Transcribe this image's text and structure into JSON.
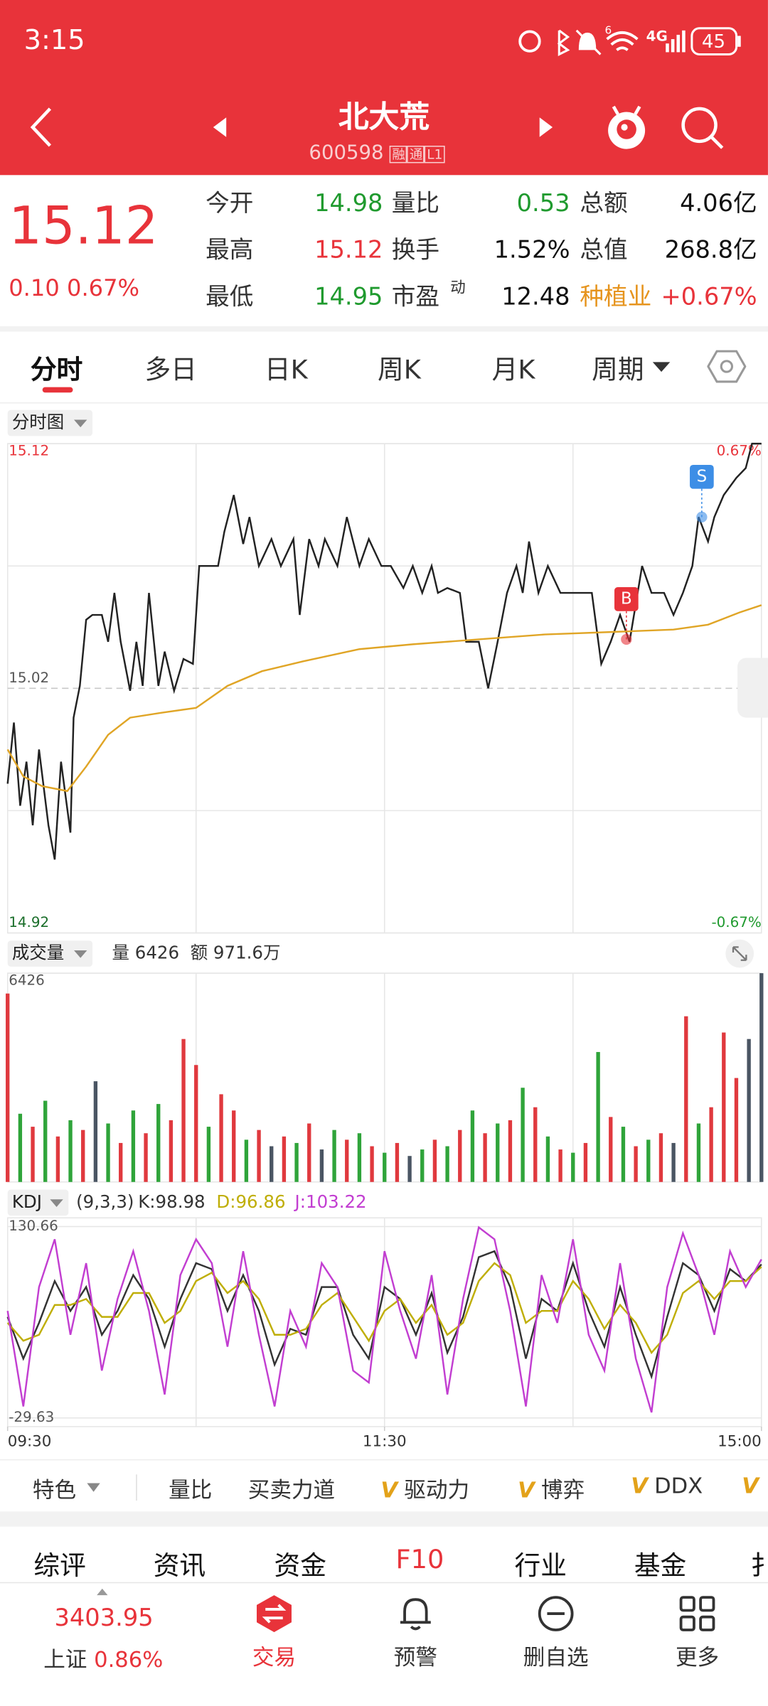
{
  "status_bar": {
    "time": "3:15",
    "wifi_label": "6",
    "network": "4G",
    "battery": "45"
  },
  "header": {
    "title": "北大荒",
    "code": "600598",
    "tags": [
      "融",
      "通",
      "L1"
    ]
  },
  "quote": {
    "price": "15.12",
    "change": "0.10",
    "change_pct": "0.67%",
    "stats": [
      [
        "今开",
        "14.98",
        "量比",
        "0.53",
        "总额",
        "4.06亿"
      ],
      [
        "最高",
        "15.12",
        "换手",
        "1.52%",
        "总值",
        "268.8亿"
      ],
      [
        "最低",
        "14.95",
        "市盈",
        "12.48",
        "种植业",
        "+0.67%"
      ]
    ],
    "pe_tag": "动"
  },
  "period_tabs": [
    "分时",
    "多日",
    "日K",
    "周K",
    "月K",
    "周期"
  ],
  "chart_data": [
    {
      "type": "line",
      "title": "分时图",
      "xlim": [
        0,
        240
      ],
      "ylim": [
        14.92,
        15.12
      ],
      "yticks": [
        14.92,
        15.02,
        15.12
      ],
      "pct_labels": [
        "0.67%",
        "-0.67%"
      ],
      "series": [
        {
          "color": "#222222",
          "x": [
            0,
            2,
            4,
            6,
            8,
            10,
            13,
            15,
            17,
            20,
            21,
            23,
            25,
            27,
            30,
            32,
            34,
            36,
            39,
            41,
            43,
            45,
            48,
            50,
            53,
            56,
            59,
            61,
            63,
            67,
            69,
            72,
            75,
            77,
            80,
            84,
            87,
            91,
            93,
            96,
            99,
            101,
            105,
            108,
            112,
            115,
            119,
            122,
            126,
            129,
            132,
            135,
            137,
            140,
            144,
            146,
            150,
            153,
            156,
            159,
            162,
            164,
            166,
            169,
            172,
            176,
            179,
            182,
            186,
            189,
            192,
            195,
            198,
            202,
            205,
            209,
            212,
            215,
            218,
            220,
            223,
            225,
            228,
            232,
            235,
            237,
            240
          ],
          "values": [
            14.981,
            15.006,
            14.972,
            14.99,
            14.964,
            14.995,
            14.964,
            14.95,
            14.99,
            14.961,
            15.008,
            15.021,
            15.048,
            15.05,
            15.05,
            15.039,
            15.059,
            15.039,
            15.019,
            15.039,
            15.021,
            15.059,
            15.021,
            15.035,
            15.019,
            15.032,
            15.03,
            15.07,
            15.07,
            15.07,
            15.084,
            15.099,
            15.079,
            15.09,
            15.07,
            15.081,
            15.07,
            15.081,
            15.05,
            15.081,
            15.07,
            15.081,
            15.07,
            15.09,
            15.07,
            15.081,
            15.07,
            15.07,
            15.061,
            15.07,
            15.059,
            15.07,
            15.059,
            15.061,
            15.059,
            15.039,
            15.039,
            15.02,
            15.039,
            15.059,
            15.07,
            15.059,
            15.08,
            15.059,
            15.07,
            15.059,
            15.059,
            15.059,
            15.059,
            15.03,
            15.039,
            15.05,
            15.039,
            15.07,
            15.059,
            15.059,
            15.05,
            15.059,
            15.07,
            15.09,
            15.08,
            15.09,
            15.099,
            15.106,
            15.11,
            15.12,
            15.12
          ]
        },
        {
          "color": "#e0a526",
          "x": [
            0,
            5,
            11,
            19,
            25,
            32,
            39,
            49,
            60,
            70,
            81,
            94,
            112,
            129,
            150,
            171,
            192,
            212,
            223,
            233,
            240
          ],
          "values": [
            14.995,
            14.984,
            14.98,
            14.978,
            14.988,
            15.001,
            15.008,
            15.01,
            15.012,
            15.021,
            15.027,
            15.031,
            15.036,
            15.038,
            15.04,
            15.042,
            15.043,
            15.044,
            15.046,
            15.051,
            15.054
          ]
        }
      ],
      "markers": [
        {
          "label": "B",
          "x": 197,
          "value": 15.04,
          "color": "#e8333a"
        },
        {
          "label": "S",
          "x": 221,
          "value": 15.09,
          "color": "#3d8ee6"
        }
      ]
    },
    {
      "type": "bar",
      "title": "成交量",
      "subtitle": [
        "量 6426",
        "额 971.6万"
      ],
      "xlim": [
        0,
        240
      ],
      "ylim": [
        0,
        6426
      ],
      "yticks": [
        6426
      ],
      "colors": {
        "up": "#e0393e",
        "down": "#2fa43a",
        "flat": "#4a5563"
      },
      "x": [
        0,
        4,
        8,
        12,
        16,
        20,
        24,
        28,
        32,
        36,
        40,
        44,
        48,
        52,
        56,
        60,
        64,
        68,
        72,
        76,
        80,
        84,
        88,
        92,
        96,
        100,
        104,
        108,
        112,
        116,
        120,
        124,
        128,
        132,
        136,
        140,
        144,
        148,
        152,
        156,
        160,
        164,
        168,
        172,
        176,
        180,
        184,
        188,
        192,
        196,
        200,
        204,
        208,
        212,
        216,
        220,
        224,
        228,
        232,
        236,
        240
      ],
      "values": [
        5800,
        2100,
        1700,
        2500,
        1400,
        1900,
        1600,
        3100,
        1800,
        1200,
        2200,
        1500,
        2400,
        1900,
        4400,
        3600,
        1700,
        2700,
        2200,
        1300,
        1600,
        1100,
        1400,
        1200,
        1800,
        1000,
        1600,
        1300,
        1500,
        1100,
        900,
        1200,
        800,
        1000,
        1300,
        1100,
        1600,
        2200,
        1500,
        1800,
        1900,
        2900,
        2300,
        1400,
        1000,
        900,
        1200,
        4000,
        2000,
        1700,
        1100,
        1300,
        1500,
        1200,
        5100,
        1800,
        2300,
        4600,
        3200,
        4400,
        6426
      ],
      "directions": [
        "up",
        "down",
        "up",
        "down",
        "up",
        "down",
        "up",
        "flat",
        "down",
        "up",
        "down",
        "up",
        "down",
        "up",
        "up",
        "up",
        "down",
        "up",
        "up",
        "down",
        "up",
        "flat",
        "up",
        "down",
        "up",
        "flat",
        "down",
        "up",
        "down",
        "up",
        "down",
        "up",
        "flat",
        "down",
        "up",
        "down",
        "up",
        "down",
        "up",
        "down",
        "up",
        "down",
        "up",
        "down",
        "up",
        "down",
        "up",
        "down",
        "up",
        "down",
        "up",
        "down",
        "up",
        "flat",
        "up",
        "down",
        "up",
        "up",
        "up",
        "flat",
        "flat"
      ]
    },
    {
      "type": "line",
      "title": "KDJ",
      "params": "(9,3,3)",
      "xlim": [
        0,
        240
      ],
      "ylim": [
        -29.63,
        130.66
      ],
      "yticks": [
        -29.63,
        130.66
      ],
      "xticks": [
        {
          "value": 0,
          "label": "09:30"
        },
        {
          "value": 120,
          "label": "11:30"
        },
        {
          "value": 240,
          "label": "15:00"
        }
      ],
      "x": [
        0,
        5,
        10,
        15,
        20,
        25,
        30,
        35,
        40,
        45,
        50,
        55,
        60,
        65,
        70,
        75,
        80,
        85,
        90,
        95,
        100,
        105,
        110,
        115,
        120,
        125,
        130,
        135,
        140,
        145,
        150,
        155,
        160,
        165,
        170,
        175,
        180,
        185,
        190,
        195,
        200,
        205,
        210,
        215,
        220,
        225,
        230,
        235,
        240
      ],
      "series": [
        {
          "name": "K:98.98",
          "color": "#333333",
          "values": [
            55,
            20,
            50,
            85,
            60,
            80,
            40,
            60,
            90,
            70,
            30,
            70,
            100,
            95,
            60,
            90,
            60,
            15,
            45,
            40,
            80,
            80,
            40,
            20,
            80,
            70,
            40,
            75,
            25,
            55,
            105,
            110,
            80,
            20,
            70,
            60,
            100,
            60,
            30,
            80,
            40,
            5,
            55,
            100,
            90,
            60,
            95,
            85,
            98.98
          ]
        },
        {
          "name": "D:96.86",
          "color": "#bfae06",
          "values": [
            50,
            35,
            40,
            65,
            65,
            70,
            55,
            55,
            75,
            75,
            50,
            60,
            85,
            92,
            75,
            85,
            70,
            40,
            40,
            45,
            65,
            75,
            55,
            35,
            60,
            70,
            50,
            65,
            40,
            50,
            85,
            100,
            90,
            50,
            60,
            60,
            85,
            70,
            45,
            65,
            50,
            25,
            40,
            75,
            85,
            70,
            85,
            85,
            96.86
          ]
        },
        {
          "name": "J:103.22",
          "color": "#c23ed1",
          "values": [
            60,
            -20,
            80,
            120,
            40,
            100,
            10,
            70,
            110,
            60,
            -10,
            90,
            120,
            100,
            30,
            110,
            40,
            -20,
            60,
            30,
            100,
            80,
            10,
            0,
            110,
            60,
            20,
            90,
            -10,
            70,
            130,
            120,
            60,
            -20,
            90,
            50,
            120,
            40,
            10,
            100,
            20,
            -25,
            80,
            125,
            90,
            40,
            110,
            80,
            103.22
          ]
        }
      ]
    }
  ],
  "indicator_bar": {
    "label": "特色",
    "items": [
      "量比",
      "买卖力道",
      "驱动力",
      "博弈",
      "DDX"
    ],
    "vip_mark": "V"
  },
  "section_tabs": [
    "综评",
    "资讯",
    "资金",
    "F10",
    "行业",
    "基金",
    "扌"
  ],
  "nav": {
    "index_value": "3403.95",
    "index_name": "上证",
    "index_pct": "0.86%",
    "items": [
      "交易",
      "预警",
      "删自选",
      "更多"
    ]
  }
}
